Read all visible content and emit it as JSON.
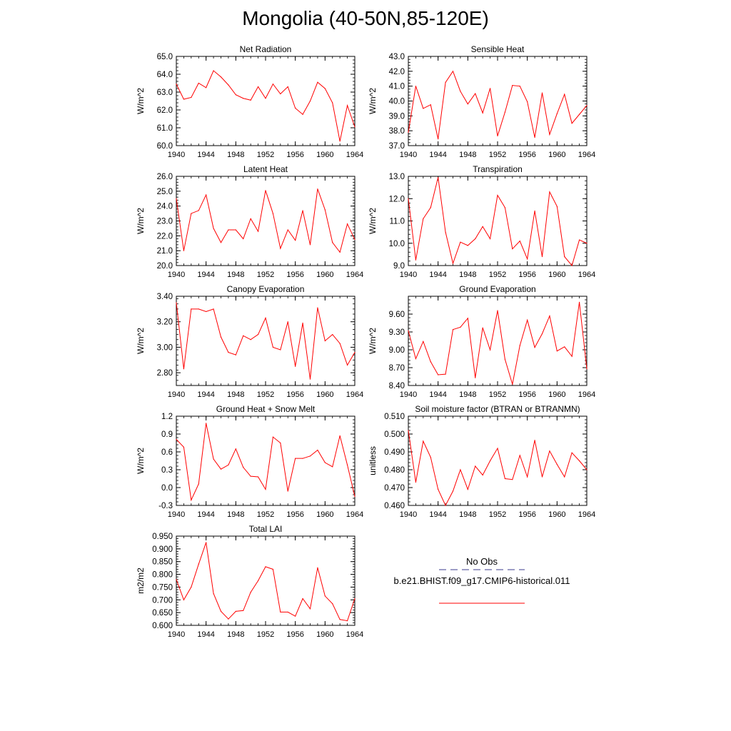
{
  "figure": {
    "title": "Mongolia (40-50N,85-120E)"
  },
  "legend": {
    "obs_label": "No Obs",
    "obs_color": "#3b3b8f",
    "model_label": "b.e21.BHIST.f09_g17.CMIP6-historical.011",
    "model_color": "#ff0000"
  },
  "line_color": "#ff0000",
  "chart_data": [
    {
      "type": "line",
      "title": "Net Radiation",
      "ylabel": "W/m^2",
      "xlim": [
        1940,
        1964
      ],
      "ylim": [
        60.0,
        65.0
      ],
      "xticks": [
        "1940",
        "1944",
        "1948",
        "1952",
        "1956",
        "1960",
        "1964"
      ],
      "yticks": [
        "60.0",
        "61.0",
        "62.0",
        "63.0",
        "64.0",
        "65.0"
      ],
      "x": [
        1940,
        1941,
        1942,
        1943,
        1944,
        1945,
        1946,
        1947,
        1948,
        1949,
        1950,
        1951,
        1952,
        1953,
        1954,
        1955,
        1956,
        1957,
        1958,
        1959,
        1960,
        1961,
        1962,
        1963,
        1964
      ],
      "series": [
        {
          "values": [
            63.45,
            62.6,
            62.7,
            63.5,
            63.25,
            64.2,
            63.85,
            63.4,
            62.85,
            62.65,
            62.55,
            63.3,
            62.65,
            63.45,
            62.9,
            63.3,
            62.1,
            61.75,
            62.5,
            63.55,
            63.2,
            62.4,
            60.25,
            62.25,
            61.05
          ]
        }
      ]
    },
    {
      "type": "line",
      "title": "Sensible Heat",
      "ylabel": "W/m^2",
      "xlim": [
        1940,
        1964
      ],
      "ylim": [
        37.0,
        43.0
      ],
      "xticks": [
        "1940",
        "1944",
        "1948",
        "1952",
        "1956",
        "1960",
        "1964"
      ],
      "yticks": [
        "37.0",
        "38.0",
        "39.0",
        "40.0",
        "41.0",
        "42.0",
        "43.0"
      ],
      "x": [
        1940,
        1941,
        1942,
        1943,
        1944,
        1945,
        1946,
        1947,
        1948,
        1949,
        1950,
        1951,
        1952,
        1953,
        1954,
        1955,
        1956,
        1957,
        1958,
        1959,
        1960,
        1961,
        1962,
        1963,
        1964
      ],
      "series": [
        {
          "values": [
            37.9,
            41.0,
            39.5,
            39.75,
            37.45,
            41.25,
            42.0,
            40.65,
            39.8,
            40.5,
            39.2,
            40.85,
            37.65,
            39.25,
            41.05,
            41.0,
            39.95,
            37.55,
            40.55,
            37.75,
            39.15,
            40.45,
            38.5,
            39.1,
            39.7
          ]
        }
      ]
    },
    {
      "type": "line",
      "title": "Latent Heat",
      "ylabel": "W/m^2",
      "xlim": [
        1940,
        1964
      ],
      "ylim": [
        20.0,
        26.0
      ],
      "xticks": [
        "1940",
        "1944",
        "1948",
        "1952",
        "1956",
        "1960",
        "1964"
      ],
      "yticks": [
        "20.0",
        "21.0",
        "22.0",
        "23.0",
        "24.0",
        "25.0",
        "26.0"
      ],
      "x": [
        1940,
        1941,
        1942,
        1943,
        1944,
        1945,
        1946,
        1947,
        1948,
        1949,
        1950,
        1951,
        1952,
        1953,
        1954,
        1955,
        1956,
        1957,
        1958,
        1959,
        1960,
        1961,
        1962,
        1963,
        1964
      ],
      "series": [
        {
          "values": [
            24.5,
            21.0,
            23.5,
            23.7,
            24.75,
            22.5,
            21.55,
            22.4,
            22.4,
            21.8,
            23.15,
            22.3,
            25.05,
            23.5,
            21.15,
            22.4,
            21.7,
            23.7,
            21.4,
            25.15,
            23.75,
            21.55,
            20.9,
            22.8,
            21.75
          ]
        }
      ]
    },
    {
      "type": "line",
      "title": "Transpiration",
      "ylabel": "W/m^2",
      "xlim": [
        1940,
        1964
      ],
      "ylim": [
        9.0,
        13.0
      ],
      "xticks": [
        "1940",
        "1944",
        "1948",
        "1952",
        "1956",
        "1960",
        "1964"
      ],
      "yticks": [
        "9.0",
        "10.0",
        "11.0",
        "12.0",
        "13.0"
      ],
      "x": [
        1940,
        1941,
        1942,
        1943,
        1944,
        1945,
        1946,
        1947,
        1948,
        1949,
        1950,
        1951,
        1952,
        1953,
        1954,
        1955,
        1956,
        1957,
        1958,
        1959,
        1960,
        1961,
        1962,
        1963,
        1964
      ],
      "series": [
        {
          "values": [
            12.0,
            9.25,
            11.1,
            11.6,
            12.95,
            10.5,
            9.1,
            10.05,
            9.9,
            10.2,
            10.75,
            10.2,
            12.15,
            11.6,
            9.75,
            10.1,
            9.3,
            11.45,
            9.4,
            12.3,
            11.65,
            9.4,
            9.0,
            10.15,
            10.0
          ]
        }
      ]
    },
    {
      "type": "line",
      "title": "Canopy Evaporation",
      "ylabel": "W/m^2",
      "xlim": [
        1940,
        1964
      ],
      "ylim": [
        2.7,
        3.4
      ],
      "xticks": [
        "1940",
        "1944",
        "1948",
        "1952",
        "1956",
        "1960",
        "1964"
      ],
      "yticks": [
        "2.80",
        "3.00",
        "3.20",
        "3.40"
      ],
      "x": [
        1940,
        1941,
        1942,
        1943,
        1944,
        1945,
        1946,
        1947,
        1948,
        1949,
        1950,
        1951,
        1952,
        1953,
        1954,
        1955,
        1956,
        1957,
        1958,
        1959,
        1960,
        1961,
        1962,
        1963,
        1964
      ],
      "series": [
        {
          "values": [
            3.35,
            2.83,
            3.3,
            3.3,
            3.28,
            3.3,
            3.08,
            2.96,
            2.94,
            3.09,
            3.06,
            3.1,
            3.23,
            3.0,
            2.98,
            3.2,
            2.85,
            3.19,
            2.75,
            3.31,
            3.05,
            3.1,
            3.03,
            2.86,
            2.96
          ]
        }
      ]
    },
    {
      "type": "line",
      "title": "Ground Evaporation",
      "ylabel": "W/m^2",
      "xlim": [
        1940,
        1964
      ],
      "ylim": [
        8.4,
        9.9
      ],
      "xticks": [
        "1940",
        "1944",
        "1948",
        "1952",
        "1956",
        "1960",
        "1964"
      ],
      "yticks": [
        "8.40",
        "8.70",
        "9.00",
        "9.30",
        "9.60"
      ],
      "x": [
        1940,
        1941,
        1942,
        1943,
        1944,
        1945,
        1946,
        1947,
        1948,
        1949,
        1950,
        1951,
        1952,
        1953,
        1954,
        1955,
        1956,
        1957,
        1958,
        1959,
        1960,
        1961,
        1962,
        1963,
        1964
      ],
      "series": [
        {
          "values": [
            9.32,
            8.85,
            9.14,
            8.8,
            8.58,
            8.59,
            9.34,
            9.38,
            9.53,
            8.53,
            9.37,
            9.0,
            9.66,
            8.84,
            8.42,
            9.07,
            9.5,
            9.04,
            9.27,
            9.57,
            8.98,
            9.05,
            8.89,
            9.8,
            8.68
          ]
        }
      ]
    },
    {
      "type": "line",
      "title": "Ground Heat + Snow Melt",
      "ylabel": "W/m^2",
      "xlim": [
        1940,
        1964
      ],
      "ylim": [
        -0.3,
        1.2
      ],
      "xticks": [
        "1940",
        "1944",
        "1948",
        "1952",
        "1956",
        "1960",
        "1964"
      ],
      "yticks": [
        "-0.3",
        "0.0",
        "0.3",
        "0.6",
        "0.9",
        "1.2"
      ],
      "x": [
        1940,
        1941,
        1942,
        1943,
        1944,
        1945,
        1946,
        1947,
        1948,
        1949,
        1950,
        1951,
        1952,
        1953,
        1954,
        1955,
        1956,
        1957,
        1958,
        1959,
        1960,
        1961,
        1962,
        1963,
        1964
      ],
      "series": [
        {
          "values": [
            0.81,
            0.68,
            -0.21,
            0.06,
            1.08,
            0.48,
            0.31,
            0.38,
            0.65,
            0.34,
            0.19,
            0.18,
            -0.03,
            0.85,
            0.75,
            -0.06,
            0.49,
            0.49,
            0.53,
            0.63,
            0.42,
            0.35,
            0.87,
            0.38,
            -0.15
          ]
        }
      ]
    },
    {
      "type": "line",
      "title": "Soil moisture factor (BTRAN or BTRANMN)",
      "ylabel": "unitless",
      "xlim": [
        1940,
        1964
      ],
      "ylim": [
        0.46,
        0.51
      ],
      "xticks": [
        "1940",
        "1944",
        "1948",
        "1952",
        "1956",
        "1960",
        "1964"
      ],
      "yticks": [
        "0.460",
        "0.470",
        "0.480",
        "0.490",
        "0.500",
        "0.510"
      ],
      "x": [
        1940,
        1941,
        1942,
        1943,
        1944,
        1945,
        1946,
        1947,
        1948,
        1949,
        1950,
        1951,
        1952,
        1953,
        1954,
        1955,
        1956,
        1957,
        1958,
        1959,
        1960,
        1961,
        1962,
        1963,
        1964
      ],
      "series": [
        {
          "values": [
            0.502,
            0.473,
            0.496,
            0.487,
            0.469,
            0.46,
            0.468,
            0.48,
            0.469,
            0.482,
            0.477,
            0.485,
            0.492,
            0.475,
            0.4745,
            0.488,
            0.476,
            0.4965,
            0.476,
            0.4905,
            0.483,
            0.476,
            0.4895,
            0.485,
            0.48
          ]
        }
      ]
    },
    {
      "type": "line",
      "title": "Total LAI",
      "ylabel": "m2/m2",
      "xlim": [
        1940,
        1964
      ],
      "ylim": [
        0.6,
        0.95
      ],
      "xticks": [
        "1940",
        "1944",
        "1948",
        "1952",
        "1956",
        "1960",
        "1964"
      ],
      "yticks": [
        "0.600",
        "0.650",
        "0.700",
        "0.750",
        "0.800",
        "0.850",
        "0.900",
        "0.950"
      ],
      "x": [
        1940,
        1941,
        1942,
        1943,
        1944,
        1945,
        1946,
        1947,
        1948,
        1949,
        1950,
        1951,
        1952,
        1953,
        1954,
        1955,
        1956,
        1957,
        1958,
        1959,
        1960,
        1961,
        1962,
        1963,
        1964
      ],
      "series": [
        {
          "values": [
            0.78,
            0.7,
            0.75,
            0.84,
            0.925,
            0.725,
            0.655,
            0.625,
            0.655,
            0.658,
            0.73,
            0.775,
            0.83,
            0.82,
            0.652,
            0.652,
            0.636,
            0.705,
            0.665,
            0.826,
            0.715,
            0.685,
            0.623,
            0.618,
            0.705
          ]
        }
      ]
    }
  ]
}
